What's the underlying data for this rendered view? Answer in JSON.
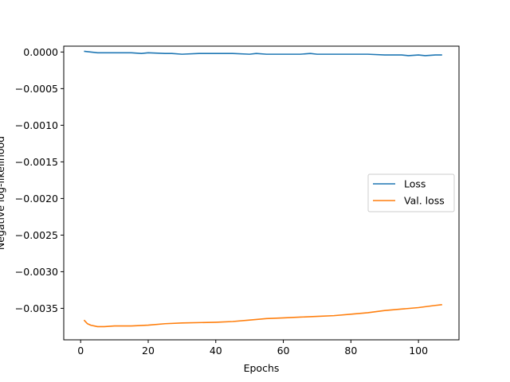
{
  "chart_data": {
    "type": "line",
    "title": "",
    "xlabel": "Epochs",
    "ylabel": "Negative log-likelihood",
    "xlim": [
      -5,
      112
    ],
    "ylim": [
      -0.00393,
      8e-05
    ],
    "xticks": [
      0,
      20,
      40,
      60,
      80,
      100
    ],
    "xtick_labels": [
      "0",
      "20",
      "40",
      "60",
      "80",
      "100"
    ],
    "yticks": [
      0.0,
      -0.0005,
      -0.001,
      -0.0015,
      -0.002,
      -0.0025,
      -0.003,
      -0.0035
    ],
    "ytick_labels": [
      "0.0000",
      "−0.0005",
      "−0.0010",
      "−0.0015",
      "−0.0020",
      "−0.0025",
      "−0.0030",
      "−0.0035"
    ],
    "grid": false,
    "legend_position": "center-right",
    "series": [
      {
        "name": "Loss",
        "color": "#1f77b4",
        "x": [
          1,
          5,
          10,
          15,
          18,
          20,
          25,
          27,
          30,
          35,
          40,
          45,
          50,
          52,
          55,
          60,
          65,
          68,
          70,
          75,
          80,
          85,
          90,
          95,
          97,
          100,
          102,
          105,
          107
        ],
        "y": [
          1e-05,
          -1e-05,
          -1e-05,
          -1e-05,
          -2e-05,
          -1e-05,
          -2e-05,
          -2e-05,
          -3e-05,
          -2e-05,
          -2e-05,
          -2e-05,
          -3e-05,
          -2e-05,
          -3e-05,
          -3e-05,
          -3e-05,
          -2e-05,
          -3e-05,
          -3e-05,
          -3e-05,
          -3e-05,
          -4e-05,
          -4e-05,
          -5e-05,
          -4e-05,
          -5e-05,
          -4e-05,
          -4e-05
        ]
      },
      {
        "name": "Val. loss",
        "color": "#ff7f0e",
        "x": [
          1,
          2,
          3,
          5,
          7,
          10,
          15,
          20,
          25,
          30,
          40,
          45,
          50,
          55,
          60,
          65,
          70,
          75,
          80,
          85,
          90,
          95,
          100,
          105,
          107
        ],
        "y": [
          -0.00366,
          -0.00371,
          -0.00373,
          -0.00375,
          -0.00375,
          -0.00374,
          -0.00374,
          -0.00373,
          -0.00371,
          -0.0037,
          -0.00369,
          -0.00368,
          -0.00366,
          -0.00364,
          -0.00363,
          -0.00362,
          -0.00361,
          -0.0036,
          -0.00358,
          -0.00356,
          -0.00353,
          -0.00351,
          -0.00349,
          -0.00346,
          -0.00345
        ]
      }
    ]
  }
}
